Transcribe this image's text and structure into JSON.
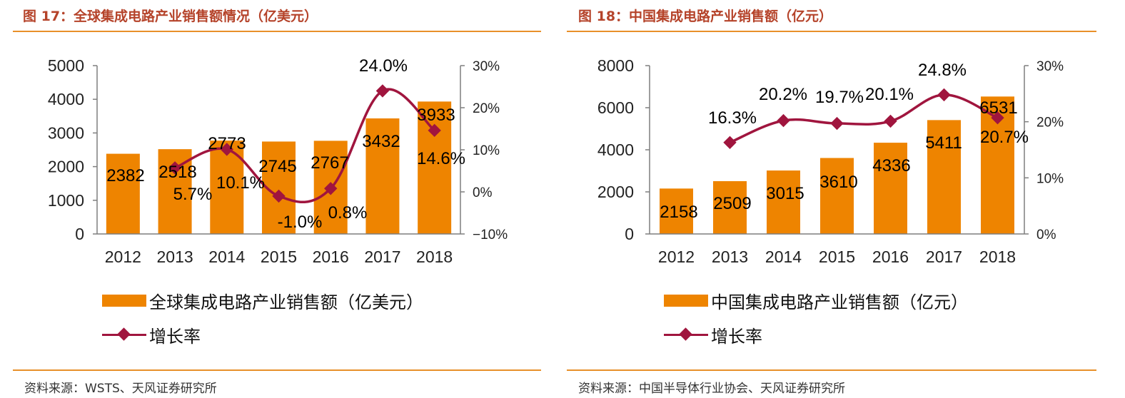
{
  "figures": [
    {
      "title": "图 17：全球集成电路产业销售额情况（亿美元）",
      "source": "资料来源：WSTS、天风证券研究所",
      "legend": {
        "bar": "全球集成电路产业销售额（亿美元）",
        "line": "增长率"
      },
      "colors": {
        "bar": "#ee8400",
        "line": "#a0153e"
      }
    },
    {
      "title": "图 18：中国集成电路产业销售额（亿元）",
      "source": "资料来源：中国半导体行业协会、天风证券研究所",
      "legend": {
        "bar": "中国集成电路产业销售额（亿元）",
        "line": "增长率"
      },
      "colors": {
        "bar": "#ee8400",
        "line": "#a0153e"
      }
    }
  ],
  "chart_data": [
    {
      "type": "bar",
      "title": "全球集成电路产业销售额情况（亿美元）",
      "categories": [
        "2012",
        "2013",
        "2014",
        "2015",
        "2016",
        "2017",
        "2018"
      ],
      "series": [
        {
          "name": "全球集成电路产业销售额（亿美元）",
          "type": "bar",
          "axis": "left",
          "values": [
            2382,
            2518,
            2773,
            2745,
            2767,
            3432,
            3933
          ],
          "labels": [
            "2382",
            "2518",
            "2773",
            "2745",
            "2767",
            "3432",
            "3933"
          ]
        },
        {
          "name": "增长率",
          "type": "line",
          "axis": "right",
          "values": [
            null,
            5.7,
            10.1,
            -1.0,
            0.8,
            24.0,
            14.6
          ],
          "labels": [
            "",
            "5.7%",
            "10.1%",
            "-1.0%",
            "0.8%",
            "24.0%",
            "14.6%"
          ]
        }
      ],
      "ylim": [
        0,
        5000
      ],
      "yticks": [
        "0",
        "1000",
        "2000",
        "3000",
        "4000",
        "5000"
      ],
      "y2lim": [
        -10,
        30
      ],
      "y2ticks": [
        "−10%",
        "0%",
        "10%",
        "20%",
        "30%"
      ],
      "xlabel": "",
      "ylabel": "",
      "grid": false,
      "legend_position": "bottom"
    },
    {
      "type": "bar",
      "title": "中国集成电路产业销售额（亿元）",
      "categories": [
        "2012",
        "2013",
        "2014",
        "2015",
        "2016",
        "2017",
        "2018"
      ],
      "series": [
        {
          "name": "中国集成电路产业销售额（亿元）",
          "type": "bar",
          "axis": "left",
          "values": [
            2158,
            2509,
            3015,
            3610,
            4336,
            5411,
            6531
          ],
          "labels": [
            "2158",
            "2509",
            "3015",
            "3610",
            "4336",
            "5411",
            "6531"
          ]
        },
        {
          "name": "增长率",
          "type": "line",
          "axis": "right",
          "values": [
            null,
            16.3,
            20.2,
            19.7,
            20.1,
            24.8,
            20.7
          ],
          "labels": [
            "",
            "16.3%",
            "20.2%",
            "19.7%",
            "20.1%",
            "24.8%",
            "20.7%"
          ]
        }
      ],
      "ylim": [
        0,
        8000
      ],
      "yticks": [
        "0",
        "2000",
        "4000",
        "6000",
        "8000"
      ],
      "y2lim": [
        0,
        30
      ],
      "y2ticks": [
        "0%",
        "10%",
        "20%",
        "30%"
      ],
      "xlabel": "",
      "ylabel": "",
      "grid": false,
      "legend_position": "bottom"
    }
  ]
}
